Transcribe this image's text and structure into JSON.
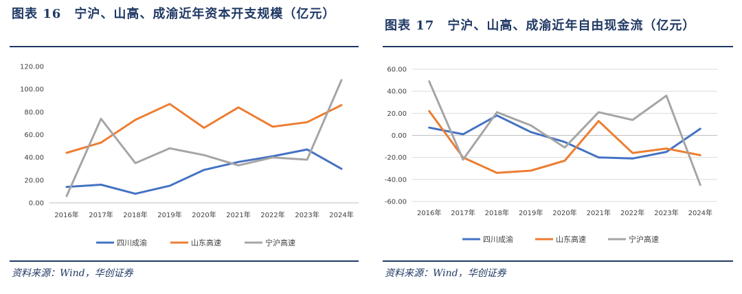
{
  "left": {
    "title": "图表 16　宁沪、山高、成渝近年资本开支规模（亿元）",
    "source": "资料来源：Wind，华创证券",
    "chart_data": {
      "type": "line",
      "x": [
        "2016年",
        "2017年",
        "2018年",
        "2019年",
        "2020年",
        "2021年",
        "2022年",
        "2023年",
        "2024年"
      ],
      "ylim": [
        0,
        120
      ],
      "yticks": [
        "0.00",
        "20.00",
        "40.00",
        "60.00",
        "80.00",
        "100.00",
        "120.00"
      ],
      "ytick_values": [
        0,
        20,
        40,
        60,
        80,
        100,
        120
      ],
      "grid": false,
      "legend": "bottom",
      "series": [
        {
          "name": "四川成渝",
          "color": "#4472c4",
          "values": [
            14,
            16,
            8,
            15,
            29,
            36,
            41,
            47,
            30
          ]
        },
        {
          "name": "山东高速",
          "color": "#ed7d31",
          "values": [
            44,
            53,
            73,
            87,
            66,
            84,
            67,
            71,
            86
          ]
        },
        {
          "name": "宁沪高速",
          "color": "#a5a5a5",
          "values": [
            6,
            74,
            35,
            48,
            42,
            33,
            40,
            38,
            108
          ]
        }
      ]
    }
  },
  "right": {
    "title": "图表 17　宁沪、山高、成渝近年自由现金流（亿元）",
    "source": "资料来源：Wind，华创证券",
    "chart_data": {
      "type": "line",
      "x": [
        "2016年",
        "2017年",
        "2018年",
        "2019年",
        "2020年",
        "2021年",
        "2022年",
        "2023年",
        "2024年"
      ],
      "ylim": [
        -60,
        60
      ],
      "yticks": [
        "-60.00",
        "-40.00",
        "-20.00",
        "0.00",
        "20.00",
        "40.00",
        "60.00"
      ],
      "ytick_values": [
        -60,
        -40,
        -20,
        0,
        20,
        40,
        60
      ],
      "grid": true,
      "legend": "bottom",
      "series": [
        {
          "name": "四川成渝",
          "color": "#4472c4",
          "values": [
            7,
            1,
            18,
            3,
            -6,
            -20,
            -21,
            -15,
            6
          ]
        },
        {
          "name": "山东高速",
          "color": "#ed7d31",
          "values": [
            22,
            -20,
            -34,
            -32,
            -23,
            13,
            -16,
            -12,
            -18
          ]
        },
        {
          "name": "宁沪高速",
          "color": "#a5a5a5",
          "values": [
            49,
            -22,
            21,
            9,
            -11,
            21,
            14,
            36,
            -45
          ]
        }
      ]
    }
  }
}
